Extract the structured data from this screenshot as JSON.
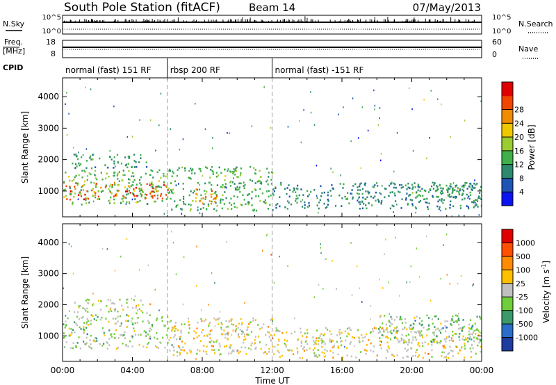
{
  "header": {
    "station": "South Pole Station (fitACF)",
    "beam": "Beam 14",
    "date": "07/May/2013"
  },
  "top_panels": {
    "nsky_label": "N.Sky",
    "nsearch_label": "N.Search",
    "freq_label_line1": "Freq.",
    "freq_label_line2": "[MHz]",
    "nave_label": "Nave",
    "cpid_label": "CPID",
    "nsky_ticks": [
      "10^5",
      "10^0"
    ],
    "nsearch_ticks": [
      "10^5",
      "10^0"
    ],
    "freq_ticks": [
      "18",
      "8"
    ],
    "nave_ticks": [
      "60",
      "0"
    ]
  },
  "cpid_segments": [
    {
      "label": "normal (fast) 151 RF",
      "start_hour": 0,
      "end_hour": 6
    },
    {
      "label": "rbsp 200 RF",
      "start_hour": 6,
      "end_hour": 12
    },
    {
      "label": "normal (fast) -151 RF",
      "start_hour": 12,
      "end_hour": 24
    }
  ],
  "x_axis": {
    "label": "Time UT",
    "ticks": [
      "00:00",
      "04:00",
      "08:00",
      "12:00",
      "16:00",
      "20:00",
      "00:00"
    ],
    "tick_hours": [
      0,
      4,
      8,
      12,
      16,
      20,
      24
    ]
  },
  "power_panel": {
    "ylabel": "Slant Range [km]",
    "yticks": [
      "1000",
      "2000",
      "3000",
      "4000"
    ],
    "ytick_values": [
      1000,
      2000,
      3000,
      4000
    ],
    "colorbar_label": "Power [dB]",
    "colorbar_ticks": [
      "4",
      "8",
      "12",
      "16",
      "20",
      "24",
      "28"
    ],
    "colorbar_colors": [
      "#0a14f0",
      "#1e55b4",
      "#2e8a6e",
      "#3fb04a",
      "#9acd32",
      "#f0c800",
      "#f08c00",
      "#f04600",
      "#e00000"
    ]
  },
  "velocity_panel": {
    "ylabel": "Slant Range [km]",
    "yticks": [
      "1000",
      "2000",
      "3000",
      "4000"
    ],
    "ytick_values": [
      1000,
      2000,
      3000,
      4000
    ],
    "colorbar_label": "Velocity [m s",
    "colorbar_label_sup": "-1",
    "colorbar_label_end": "]",
    "colorbar_ticks": [
      "1000",
      "500",
      "100",
      "25",
      "-25",
      "-100",
      "-500",
      "-1000"
    ],
    "colorbar_colors": [
      "#1e3ca0",
      "#2a6ec8",
      "#3a9a6a",
      "#6fcf3a",
      "#c0c0c0",
      "#ffc000",
      "#ff8c00",
      "#ff5000",
      "#e00000"
    ]
  },
  "chart_data": [
    {
      "type": "heatmap",
      "title": "South Pole Station (fitACF) Beam 14 07/May/2013",
      "xlabel": "Time UT",
      "ylabel": "Slant Range [km]",
      "xlim": [
        0,
        24
      ],
      "ylim": [
        180,
        4600
      ],
      "colorbar": "Power [dB]",
      "clim": [
        0,
        32
      ],
      "regions": [
        {
          "x": [
            0.0,
            6.0
          ],
          "y": [
            750,
            1300
          ],
          "value": 27
        },
        {
          "x": [
            0.0,
            6.0
          ],
          "y": [
            600,
            1700
          ],
          "value": 14
        },
        {
          "x": [
            0.5,
            5.0
          ],
          "y": [
            1750,
            2200
          ],
          "value": 10
        },
        {
          "x": [
            6.0,
            12.0
          ],
          "y": [
            400,
            1800
          ],
          "value": 12
        },
        {
          "x": [
            7.5,
            8.8
          ],
          "y": [
            600,
            1100
          ],
          "value": 22
        },
        {
          "x": [
            12.0,
            24.0
          ],
          "y": [
            450,
            1300
          ],
          "value": 9
        },
        {
          "x": [
            20.0,
            24.0
          ],
          "y": [
            700,
            1300
          ],
          "value": 10
        }
      ]
    },
    {
      "type": "heatmap",
      "title": "",
      "xlabel": "Time UT",
      "ylabel": "Slant Range [km]",
      "xlim": [
        0,
        24
      ],
      "ylim": [
        180,
        4600
      ],
      "colorbar": "Velocity [m s^-1]",
      "clim": [
        -1000,
        1000
      ],
      "regions": [
        {
          "x": [
            0.0,
            6.0
          ],
          "y": [
            600,
            1700
          ],
          "value": -150
        },
        {
          "x": [
            0.5,
            5.0
          ],
          "y": [
            1750,
            2200
          ],
          "value": 10
        },
        {
          "x": [
            6.0,
            12.0
          ],
          "y": [
            400,
            1600
          ],
          "value": 80
        },
        {
          "x": [
            12.0,
            24.0
          ],
          "y": [
            300,
            1300
          ],
          "value": 60
        },
        {
          "x": [
            18.0,
            24.0
          ],
          "y": [
            800,
            1700
          ],
          "value": -200
        }
      ]
    }
  ]
}
